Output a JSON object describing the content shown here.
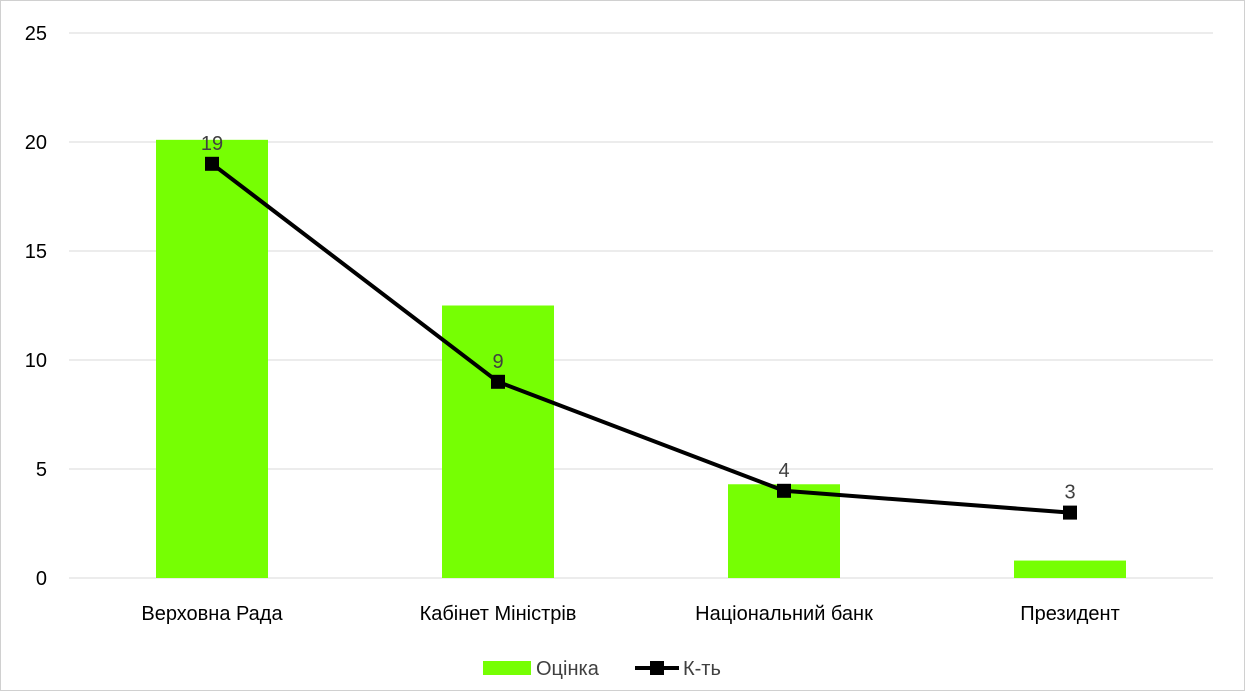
{
  "chart_data": {
    "type": "bar",
    "categories": [
      "Верховна Рада",
      "Кабінет Міністрів",
      "Національний банк",
      "Президент"
    ],
    "series": [
      {
        "name": "Оцінка",
        "type": "bar",
        "color": "#76ff03",
        "values": [
          20.1,
          12.5,
          4.3,
          0.8
        ],
        "data_labels": [
          "",
          "",
          "",
          ""
        ]
      },
      {
        "name": "К-ть",
        "type": "line",
        "color": "#000000",
        "marker": "square",
        "values": [
          19,
          9,
          4,
          3
        ],
        "data_labels": [
          "19",
          "9",
          "4",
          "3"
        ]
      }
    ],
    "y_ticks": [
      "0",
      "5",
      "10",
      "15",
      "20",
      "25"
    ],
    "ylim": [
      0,
      25
    ],
    "grid": true,
    "legend_position": "bottom"
  }
}
